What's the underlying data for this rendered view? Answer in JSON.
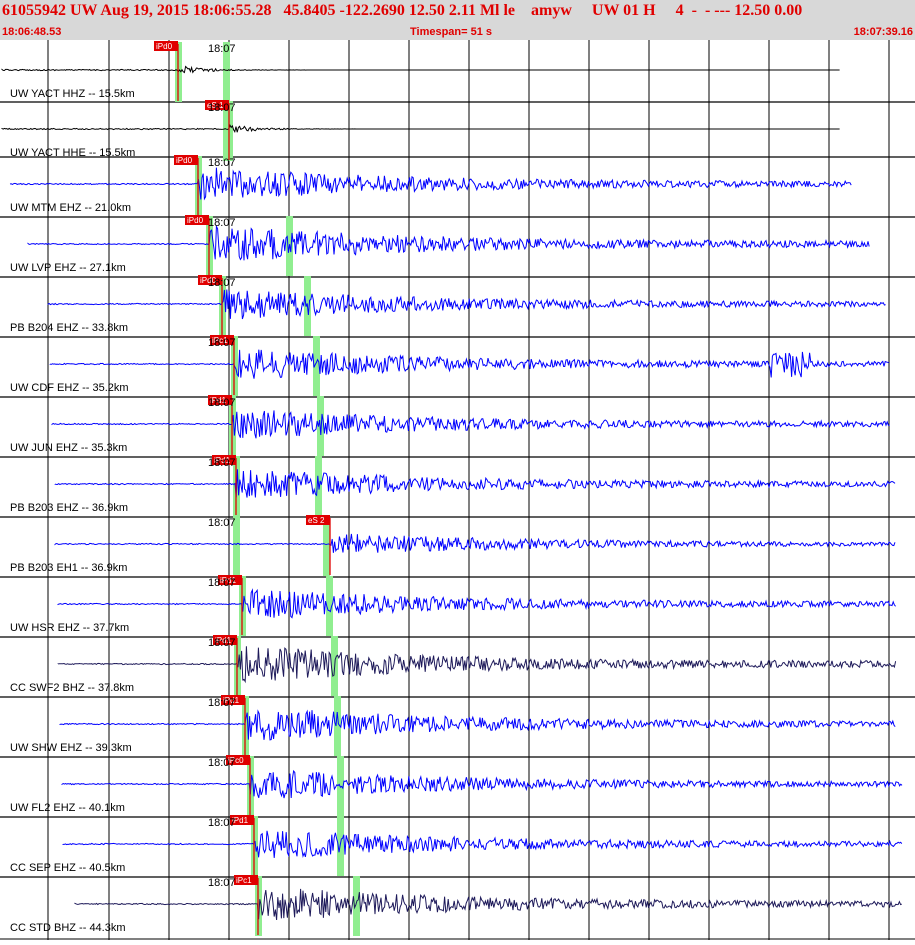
{
  "header": {
    "title": "61055942 UW Aug 19, 2015 18:06:55.28   45.8405 -122.2690 12.50 2.11 Ml le    amyw     UW 01 H     4  -  - --- 12.50 0.00",
    "start_time": "18:06:48.53",
    "timespan_label": "Timespan=  51 s",
    "end_time": "18:07:39.16"
  },
  "time_tick_label": "18:07",
  "colors": {
    "header_text": "#e00000",
    "header_bg": "#d8d8d8",
    "trace_blue": "#0000ff",
    "trace_black": "#000000",
    "trace_navy": "#1e1a5a",
    "pick_line": "#e00000",
    "pick_window": "#90ee90"
  },
  "traces": [
    {
      "label": "UW YACT HHZ -- 15.5km",
      "pick": "iPd0",
      "color": "black"
    },
    {
      "label": "UW YACT HHE -- 15.5km",
      "pick": "eS 1",
      "color": "black"
    },
    {
      "label": "UW MTM EHZ -- 21.0km",
      "pick": "iPd0",
      "color": "blue"
    },
    {
      "label": "UW LVP EHZ -- 27.1km",
      "pick": "iPd0",
      "color": "blue"
    },
    {
      "label": "PB B204 EHZ -- 33.8km",
      "pick": "iPd0",
      "color": "blue"
    },
    {
      "label": "UW CDF EHZ -- 35.2km",
      "pick": "iPc1",
      "color": "blue"
    },
    {
      "label": "UW JUN EHZ -- 35.3km",
      "pick": "iPd1",
      "color": "blue"
    },
    {
      "label": "PB B203 EHZ -- 36.9km",
      "pick": "iPd1",
      "color": "blue"
    },
    {
      "label": "PB B203 EH1 -- 36.9km",
      "pick": "eS 2",
      "color": "blue"
    },
    {
      "label": "UW HSR EHZ -- 37.7km",
      "pick": "iPd1",
      "color": "blue"
    },
    {
      "label": "CC SWF2 BHZ -- 37.8km",
      "pick": "iPd1",
      "color": "navy"
    },
    {
      "label": "UW SHW EHZ -- 39.3km",
      "pick": "iPd1",
      "color": "blue"
    },
    {
      "label": "UW FL2 EHZ -- 40.1km",
      "pick": "iPc0",
      "color": "blue"
    },
    {
      "label": "CC SEP EHZ -- 40.5km",
      "pick": "iPd1",
      "color": "blue"
    },
    {
      "label": "CC STD BHZ -- 44.3km",
      "pick": "iPc1",
      "color": "navy"
    }
  ]
}
